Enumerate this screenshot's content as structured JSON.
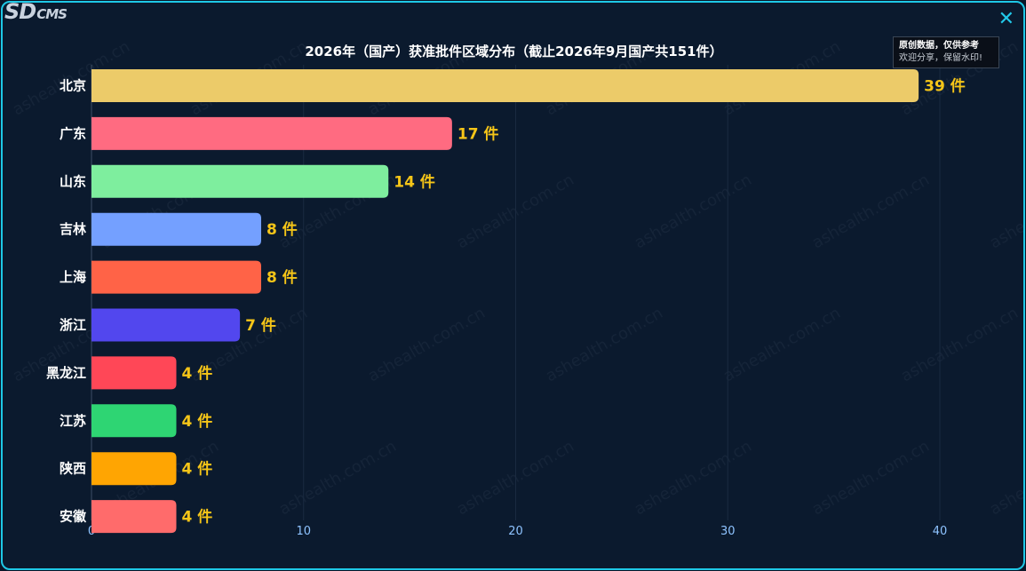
{
  "logo": {
    "main": "SD",
    "sub": "CMS"
  },
  "close_icon": "close-icon",
  "note": {
    "line1": "原创数据，仅供参考",
    "line2": "欢迎分享，保留水印!"
  },
  "watermark_text": "ashealth.com.cn",
  "colors": {
    "background": "#0b1a2e",
    "border": "#1ec8e6",
    "value_label": "#f5c518",
    "tick_label": "#8ec3ff"
  },
  "chart_data": {
    "type": "bar",
    "orientation": "horizontal",
    "title": "2026年（国产）获准批件区域分布（截止2026年9月国产共151件）",
    "categories": [
      "北京",
      "广东",
      "山东",
      "吉林",
      "上海",
      "浙江",
      "黑龙江",
      "江苏",
      "陕西",
      "安徽"
    ],
    "values": [
      39,
      17,
      14,
      8,
      8,
      7,
      4,
      4,
      4,
      4
    ],
    "value_suffix": " 件",
    "bar_colors": [
      "#eccb69",
      "#ff6b81",
      "#7eee9e",
      "#74a0ff",
      "#ff6347",
      "#5247ee",
      "#ff4757",
      "#2ed573",
      "#ffa502",
      "#ff6b6b"
    ],
    "xlim": [
      0,
      40
    ],
    "xticks": [
      0,
      10,
      20,
      30,
      40
    ],
    "grid": true,
    "legend": "none"
  }
}
